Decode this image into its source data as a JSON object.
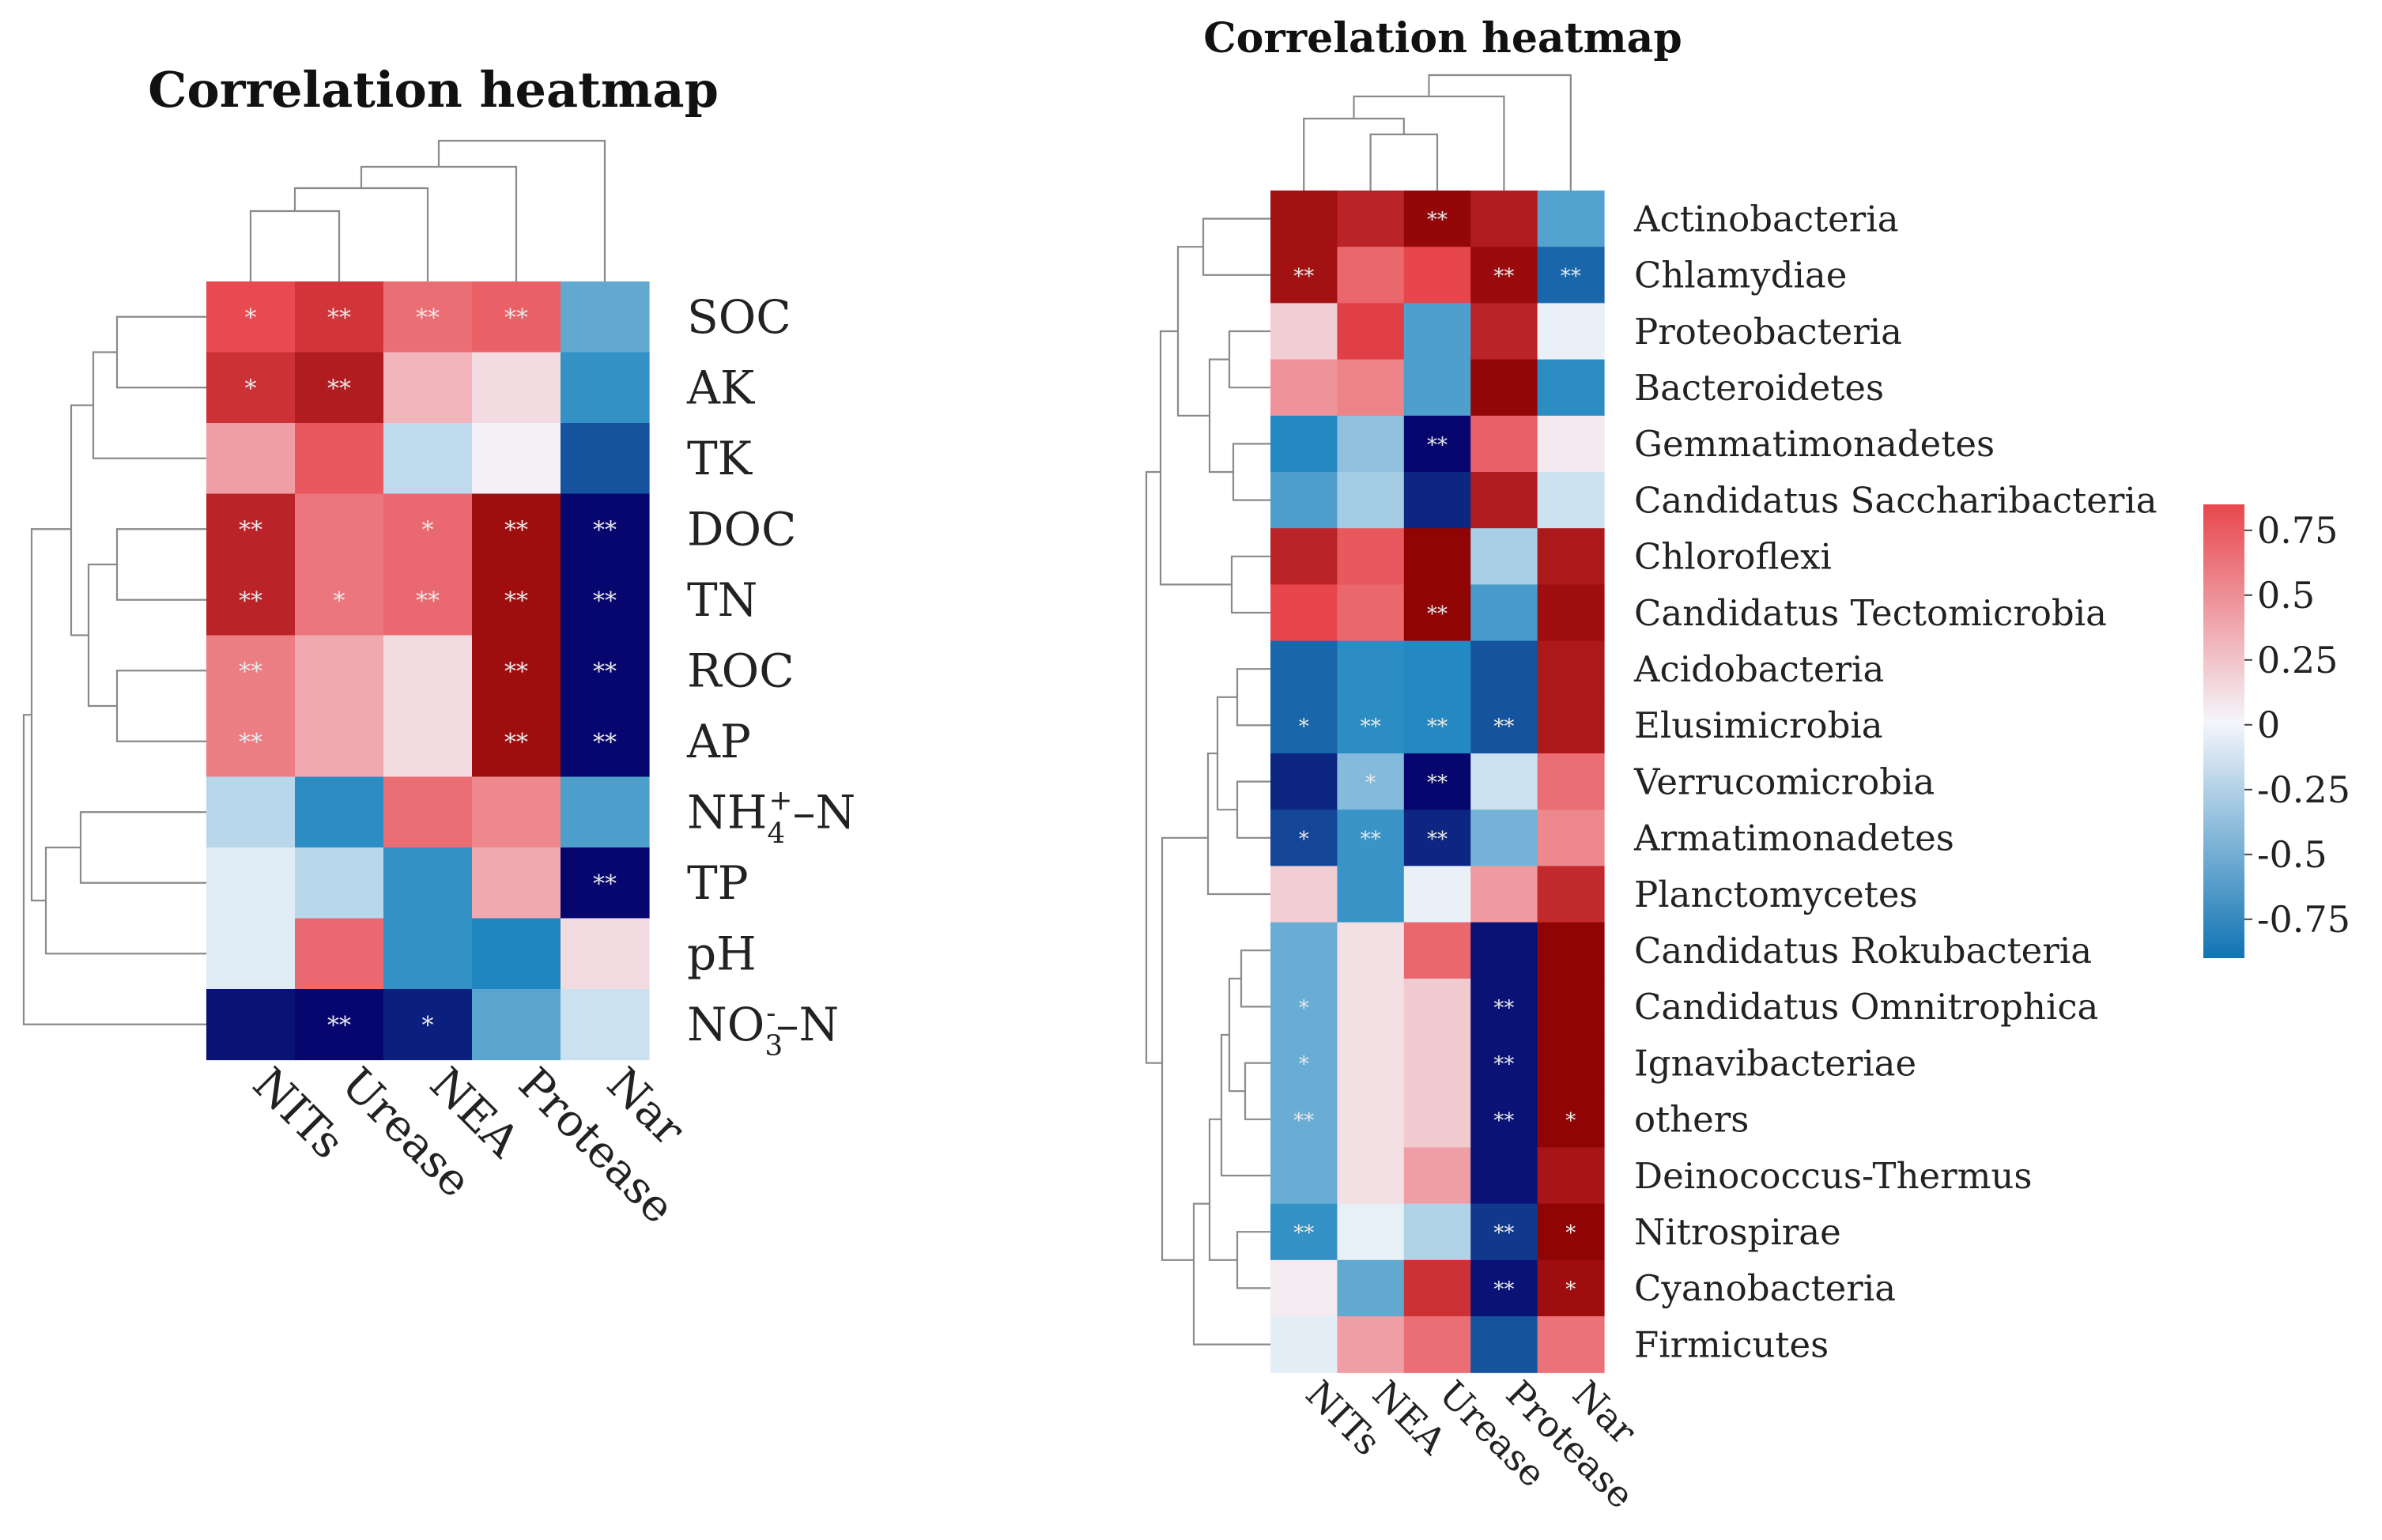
{
  "chart_data": [
    {
      "type": "heatmap",
      "title": "Correlation heatmap",
      "columns": [
        "NITs",
        "Urease",
        "NEA",
        "Protease",
        "Nar"
      ],
      "rows": [
        "SOC",
        "AK",
        "TK",
        "DOC",
        "TN",
        "ROC",
        "AP",
        "NH4+-N",
        "TP",
        "pH",
        "NO3--N"
      ],
      "row_label_parts": [
        {
          "main": "SOC"
        },
        {
          "main": "AK"
        },
        {
          "main": "TK"
        },
        {
          "main": "DOC"
        },
        {
          "main": "TN"
        },
        {
          "main": "ROC"
        },
        {
          "main": "AP"
        },
        {
          "main": "NH",
          "sub": "4",
          "sup": "+",
          "tail": "–N"
        },
        {
          "main": "TP"
        },
        {
          "main": "pH"
        },
        {
          "main": "NO",
          "sub": "3",
          "sup": "-",
          "tail": "–N"
        }
      ],
      "values": [
        [
          0.78,
          0.85,
          0.62,
          0.68,
          -0.55
        ],
        [
          0.86,
          0.92,
          0.3,
          0.12,
          -0.72
        ],
        [
          0.4,
          0.72,
          -0.2,
          0.03,
          -0.88
        ],
        [
          0.9,
          0.58,
          0.64,
          0.96,
          -1.0
        ],
        [
          0.9,
          0.58,
          0.64,
          0.96,
          -1.0
        ],
        [
          0.55,
          0.35,
          0.12,
          0.96,
          -1.0
        ],
        [
          0.55,
          0.35,
          0.12,
          0.96,
          -1.0
        ],
        [
          -0.22,
          -0.75,
          0.62,
          0.5,
          -0.62
        ],
        [
          -0.08,
          -0.22,
          -0.72,
          0.35,
          -1.0
        ],
        [
          -0.08,
          0.64,
          -0.72,
          -0.8,
          0.12
        ],
        [
          -0.98,
          -1.0,
          -0.96,
          -0.58,
          -0.15
        ]
      ],
      "significance": [
        [
          "*",
          "**",
          "**",
          "**",
          ""
        ],
        [
          "*",
          "**",
          "",
          "",
          ""
        ],
        [
          "",
          "",
          "",
          "",
          ""
        ],
        [
          "**",
          "",
          "*",
          "**",
          "**"
        ],
        [
          "**",
          "*",
          "**",
          "**",
          "**"
        ],
        [
          "**",
          "",
          "",
          "**",
          "**"
        ],
        [
          "**",
          "",
          "",
          "**",
          "**"
        ],
        [
          "",
          "",
          "",
          "",
          ""
        ],
        [
          "",
          "",
          "",
          "",
          "**"
        ],
        [
          "",
          "",
          "",
          "",
          ""
        ],
        [
          "",
          "**",
          "*",
          "",
          ""
        ]
      ]
    },
    {
      "type": "heatmap",
      "title": "Correlation heatmap",
      "columns": [
        "NITs",
        "NEA",
        "Urease",
        "Protease",
        "Nar"
      ],
      "rows": [
        "Actinobacteria",
        "Chlamydiae",
        "Proteobacteria",
        "Bacteroidetes",
        "Gemmatimonadetes",
        "Candidatus Saccharibacteria",
        "Chloroflexi",
        "Candidatus Tectomicrobia",
        "Acidobacteria",
        "Elusimicrobia",
        "Verrucomicrobia",
        "Armatimonadetes",
        "Planctomycetes",
        "Candidatus Rokubacteria",
        "Candidatus Omnitrophica",
        "Ignavibacteriae",
        "others",
        "Deinococcus-Thermus",
        "Nitrospirae",
        "Cyanobacteria",
        "Firmicutes"
      ],
      "values": [
        [
          0.95,
          0.9,
          0.98,
          0.92,
          -0.6
        ],
        [
          0.95,
          0.65,
          0.8,
          0.97,
          -0.85
        ],
        [
          0.18,
          0.82,
          -0.62,
          0.9,
          -0.04
        ],
        [
          0.45,
          0.52,
          -0.62,
          0.98,
          -0.75
        ],
        [
          -0.78,
          -0.38,
          -1.0,
          0.68,
          0.06
        ],
        [
          -0.62,
          -0.3,
          -0.95,
          0.92,
          -0.15
        ],
        [
          0.9,
          0.72,
          0.99,
          -0.28,
          0.93
        ],
        [
          0.8,
          0.65,
          0.99,
          -0.65,
          0.96
        ],
        [
          -0.85,
          -0.75,
          -0.78,
          -0.88,
          0.93
        ],
        [
          -0.85,
          -0.75,
          -0.78,
          -0.88,
          0.93
        ],
        [
          -0.95,
          -0.42,
          -1.0,
          -0.15,
          0.62
        ],
        [
          -0.9,
          -0.7,
          -0.95,
          -0.48,
          0.5
        ],
        [
          0.18,
          -0.7,
          -0.04,
          0.42,
          0.88
        ],
        [
          -0.52,
          0.1,
          0.65,
          -0.98,
          0.99
        ],
        [
          -0.52,
          0.1,
          0.2,
          -0.98,
          0.99
        ],
        [
          -0.52,
          0.1,
          0.2,
          -0.98,
          0.99
        ],
        [
          -0.52,
          0.1,
          0.2,
          -0.98,
          0.99
        ],
        [
          -0.52,
          0.1,
          0.4,
          -0.98,
          0.94
        ],
        [
          -0.72,
          -0.05,
          -0.25,
          -0.92,
          0.99
        ],
        [
          0.05,
          -0.55,
          0.86,
          -0.98,
          0.96
        ],
        [
          -0.06,
          0.4,
          0.62,
          -0.88,
          0.6
        ]
      ],
      "significance": [
        [
          "",
          "",
          "**",
          "",
          ""
        ],
        [
          "**",
          "",
          "",
          "**",
          "**"
        ],
        [
          "",
          "",
          "",
          "",
          ""
        ],
        [
          "",
          "",
          "",
          "",
          ""
        ],
        [
          "",
          "",
          "**",
          "",
          ""
        ],
        [
          "",
          "",
          "",
          "",
          ""
        ],
        [
          "",
          "",
          "",
          "",
          ""
        ],
        [
          "",
          "",
          "**",
          "",
          ""
        ],
        [
          "",
          "",
          "",
          "",
          ""
        ],
        [
          "*",
          "**",
          "**",
          "**",
          ""
        ],
        [
          "",
          "*",
          "**",
          "",
          ""
        ],
        [
          "*",
          "**",
          "**",
          "",
          ""
        ],
        [
          "",
          "",
          "",
          "",
          ""
        ],
        [
          "",
          "",
          "",
          "",
          ""
        ],
        [
          "*",
          "",
          "",
          "**",
          ""
        ],
        [
          "*",
          "",
          "",
          "**",
          ""
        ],
        [
          "**",
          "",
          "",
          "**",
          "*"
        ],
        [
          "",
          "",
          "",
          "",
          ""
        ],
        [
          "**",
          "",
          "",
          "**",
          "*"
        ],
        [
          "",
          "",
          "",
          "**",
          "*"
        ],
        [
          "",
          "",
          "",
          "",
          ""
        ]
      ]
    }
  ],
  "legend": {
    "ticks": [
      "0.75",
      "0.5",
      "0.25",
      "0",
      "-0.25",
      "-0.5",
      "-0.75"
    ],
    "tick_values": [
      0.75,
      0.5,
      0.25,
      0,
      -0.25,
      -0.5,
      -0.75
    ],
    "range": [
      -0.9,
      0.85
    ]
  },
  "colors": {
    "positive_max": "#8b0000",
    "positive_mid": "#e8464d",
    "neutral": "#f4f6fb",
    "negative_mid": "#1f86bf",
    "negative_max": "#06066e",
    "legend_top": "#e8464d",
    "legend_bottom": "#0f74b3"
  }
}
